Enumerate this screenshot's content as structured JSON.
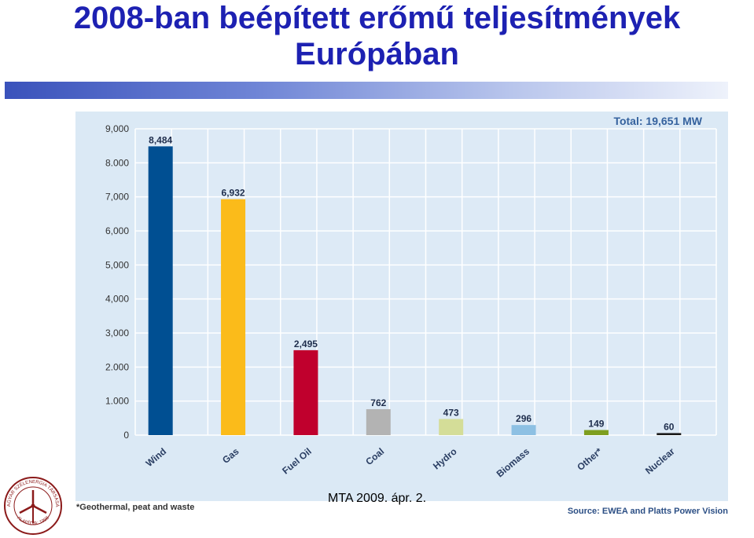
{
  "slide": {
    "title_line1": "2008-ban beépített erőmű teljesítmények",
    "title_line2": "Európában",
    "footer": "MTA 2009. ápr. 2.",
    "logo_text": "MAGYAR SZÉLENERGIA TÁRSASÁG",
    "logo_year": "ALAPÍTVA: 1998"
  },
  "chart_data": {
    "type": "bar",
    "categories": [
      "Wind",
      "Gas",
      "Fuel Oil",
      "Coal",
      "Hydro",
      "Biomass",
      "Other*",
      "Nuclear"
    ],
    "values": [
      8484,
      6932,
      2495,
      762,
      473,
      296,
      149,
      60
    ],
    "value_labels": [
      "8,484",
      "6,932",
      "2,495",
      "762",
      "473",
      "296",
      "149",
      "60"
    ],
    "colors": [
      "#004f92",
      "#fbbb1a",
      "#c0002d",
      "#b3b3b3",
      "#d4dd98",
      "#8dc0e3",
      "#7e9e1f",
      "#1a1a1a"
    ],
    "y_ticks": [
      0,
      1000,
      2000,
      3000,
      4000,
      5000,
      6000,
      7000,
      8000,
      9000
    ],
    "y_tick_labels": [
      "0",
      "1.000",
      "2.000",
      "3,000",
      "4,000",
      "5,000",
      "6,000",
      "7,000",
      "8.000",
      "9,000"
    ],
    "ylim": [
      0,
      9000
    ],
    "grid": true,
    "total_label": "Total: 19,651 MW",
    "footnote": "*Geothermal, peat and waste",
    "source": "Source: EWEA and Platts Power Vision"
  }
}
